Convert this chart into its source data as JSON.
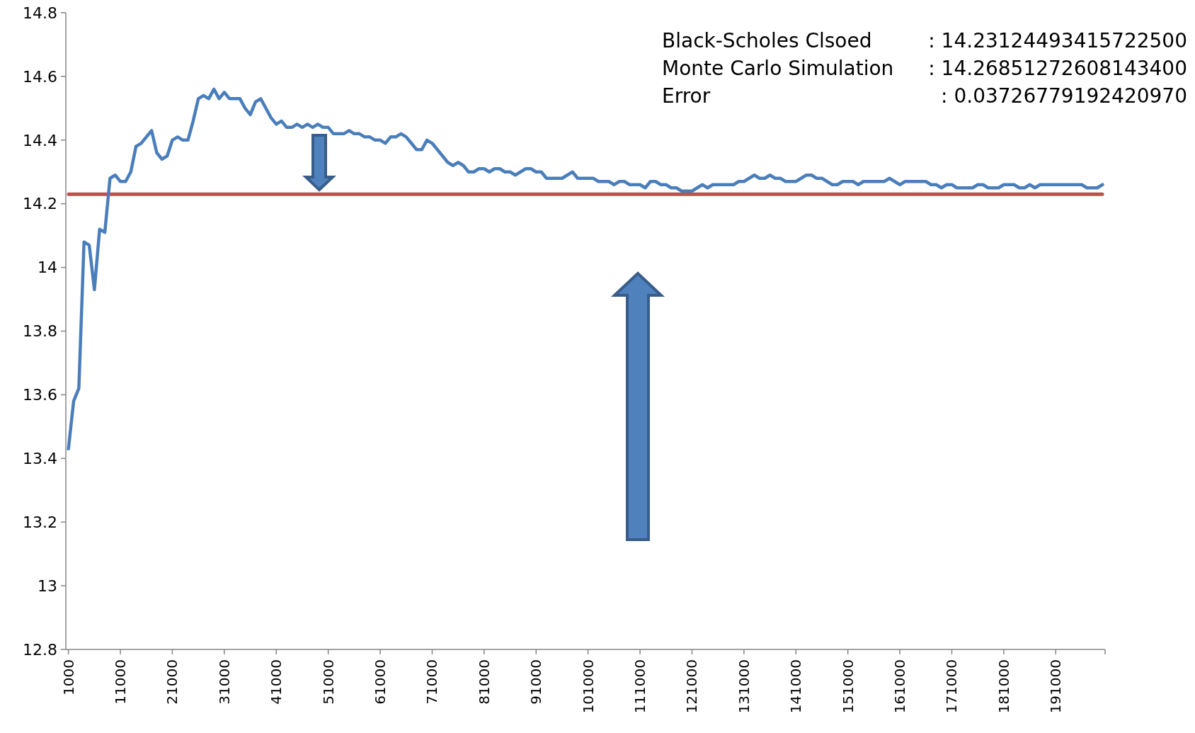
{
  "chart_data": {
    "type": "line",
    "xlim": [
      500,
      200500
    ],
    "ylim": [
      12.8,
      14.8
    ],
    "xticks": [
      1000,
      11000,
      21000,
      31000,
      41000,
      51000,
      61000,
      71000,
      81000,
      91000,
      101000,
      111000,
      121000,
      131000,
      141000,
      151000,
      161000,
      171000,
      181000,
      191000
    ],
    "yticks": [
      12.8,
      13,
      13.2,
      13.4,
      13.6,
      13.8,
      14,
      14.2,
      14.4,
      14.6,
      14.8
    ],
    "grid": false,
    "marker": "none",
    "line_style": "solid",
    "annotations": [
      "Black-Scholes Clsoed : 14.23124493415722500",
      "Monte Carlo Simulation : 14.26851272608143400",
      "Error : 0.03726779192420970"
    ],
    "ref_lines": [
      {
        "axis": "y",
        "value": 14.23,
        "color": "#c0504d"
      }
    ],
    "series": [
      {
        "color": "#4a7ebb",
        "x": [
          1000,
          2000,
          3000,
          4000,
          5000,
          6000,
          7000,
          8000,
          9000,
          10000,
          11000,
          12000,
          13000,
          14000,
          15000,
          16000,
          17000,
          18000,
          19000,
          20000,
          21000,
          22000,
          23000,
          24000,
          25000,
          26000,
          27000,
          28000,
          29000,
          30000,
          31000,
          32000,
          33000,
          34000,
          35000,
          36000,
          37000,
          38000,
          39000,
          40000,
          41000,
          42000,
          43000,
          44000,
          45000,
          46000,
          47000,
          48000,
          49000,
          50000,
          51000,
          52000,
          53000,
          54000,
          55000,
          56000,
          57000,
          58000,
          59000,
          60000,
          61000,
          62000,
          63000,
          64000,
          65000,
          66000,
          67000,
          68000,
          69000,
          70000,
          71000,
          72000,
          73000,
          74000,
          75000,
          76000,
          77000,
          78000,
          79000,
          80000,
          81000,
          82000,
          83000,
          84000,
          85000,
          86000,
          87000,
          88000,
          89000,
          90000,
          91000,
          92000,
          93000,
          94000,
          95000,
          96000,
          97000,
          98000,
          99000,
          100000,
          101000,
          102000,
          103000,
          104000,
          105000,
          106000,
          107000,
          108000,
          109000,
          110000,
          111000,
          112000,
          113000,
          114000,
          115000,
          116000,
          117000,
          118000,
          119000,
          120000,
          121000,
          122000,
          123000,
          124000,
          125000,
          126000,
          127000,
          128000,
          129000,
          130000,
          131000,
          132000,
          133000,
          134000,
          135000,
          136000,
          137000,
          138000,
          139000,
          140000,
          141000,
          142000,
          143000,
          144000,
          145000,
          146000,
          147000,
          148000,
          149000,
          150000,
          151000,
          152000,
          153000,
          154000,
          155000,
          156000,
          157000,
          158000,
          159000,
          160000,
          161000,
          162000,
          163000,
          164000,
          165000,
          166000,
          167000,
          168000,
          169000,
          170000,
          171000,
          172000,
          173000,
          174000,
          175000,
          176000,
          177000,
          178000,
          179000,
          180000,
          181000,
          182000,
          183000,
          184000,
          185000,
          186000,
          187000,
          188000,
          189000,
          190000,
          191000,
          192000,
          193000,
          194000,
          195000,
          196000,
          197000,
          198000,
          199000,
          200000
        ],
        "values": [
          13.43,
          13.58,
          13.62,
          14.08,
          14.07,
          13.93,
          14.12,
          14.11,
          14.28,
          14.29,
          14.27,
          14.27,
          14.3,
          14.38,
          14.39,
          14.41,
          14.43,
          14.36,
          14.34,
          14.35,
          14.4,
          14.41,
          14.4,
          14.4,
          14.46,
          14.53,
          14.54,
          14.53,
          14.56,
          14.53,
          14.55,
          14.53,
          14.53,
          14.53,
          14.5,
          14.48,
          14.52,
          14.53,
          14.5,
          14.47,
          14.45,
          14.46,
          14.44,
          14.44,
          14.45,
          14.44,
          14.45,
          14.44,
          14.45,
          14.44,
          14.44,
          14.42,
          14.42,
          14.42,
          14.43,
          14.42,
          14.42,
          14.41,
          14.41,
          14.4,
          14.4,
          14.39,
          14.41,
          14.41,
          14.42,
          14.41,
          14.39,
          14.37,
          14.37,
          14.4,
          14.39,
          14.37,
          14.35,
          14.33,
          14.32,
          14.33,
          14.32,
          14.3,
          14.3,
          14.31,
          14.31,
          14.3,
          14.31,
          14.31,
          14.3,
          14.3,
          14.29,
          14.3,
          14.31,
          14.31,
          14.3,
          14.3,
          14.28,
          14.28,
          14.28,
          14.28,
          14.29,
          14.3,
          14.28,
          14.28,
          14.28,
          14.28,
          14.27,
          14.27,
          14.27,
          14.26,
          14.27,
          14.27,
          14.26,
          14.26,
          14.26,
          14.25,
          14.27,
          14.27,
          14.26,
          14.26,
          14.25,
          14.25,
          14.24,
          14.24,
          14.24,
          14.25,
          14.26,
          14.25,
          14.26,
          14.26,
          14.26,
          14.26,
          14.26,
          14.27,
          14.27,
          14.28,
          14.29,
          14.28,
          14.28,
          14.29,
          14.28,
          14.28,
          14.27,
          14.27,
          14.27,
          14.28,
          14.29,
          14.29,
          14.28,
          14.28,
          14.27,
          14.26,
          14.26,
          14.27,
          14.27,
          14.27,
          14.26,
          14.27,
          14.27,
          14.27,
          14.27,
          14.27,
          14.28,
          14.27,
          14.26,
          14.27,
          14.27,
          14.27,
          14.27,
          14.27,
          14.26,
          14.26,
          14.25,
          14.26,
          14.26,
          14.25,
          14.25,
          14.25,
          14.25,
          14.26,
          14.26,
          14.25,
          14.25,
          14.25,
          14.26,
          14.26,
          14.26,
          14.25,
          14.25,
          14.26,
          14.25,
          14.26,
          14.26,
          14.26,
          14.26,
          14.26,
          14.26,
          14.26,
          14.26,
          14.26,
          14.25,
          14.25,
          14.25,
          14.26
        ]
      }
    ]
  }
}
